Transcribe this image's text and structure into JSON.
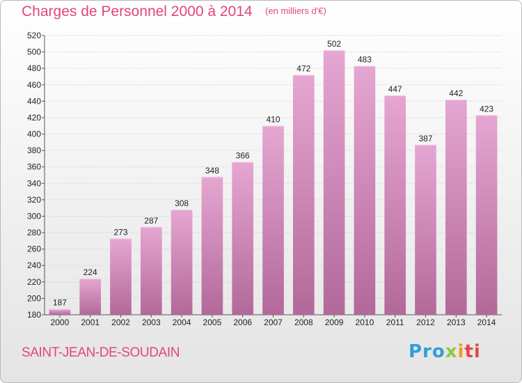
{
  "title": "Charges de Personnel 2000 à 2014",
  "unit_label": "(en milliers d'€)",
  "commune": "SAINT-JEAN-DE-SOUDAIN",
  "logo": {
    "parts": [
      "Pro",
      "x",
      "i",
      "ti"
    ],
    "colors": [
      "#2f9fd8",
      "#8cc63e",
      "#f39a1f",
      "#e2474b"
    ]
  },
  "colors": {
    "bar_top": "#e6a6d2",
    "bar_bottom": "#b2699a",
    "title": "#e0457e"
  },
  "chart_data": {
    "type": "bar",
    "categories": [
      "2000",
      "2001",
      "2002",
      "2003",
      "2004",
      "2005",
      "2006",
      "2007",
      "2008",
      "2009",
      "2010",
      "2011",
      "2012",
      "2013",
      "2014"
    ],
    "values": [
      187,
      224,
      273,
      287,
      308,
      348,
      366,
      410,
      472,
      502,
      483,
      447,
      387,
      442,
      423
    ],
    "ylim": [
      180,
      520
    ],
    "yticks": [
      180,
      200,
      220,
      240,
      260,
      280,
      300,
      320,
      340,
      360,
      380,
      400,
      420,
      440,
      460,
      480,
      500,
      520
    ],
    "grid": true
  }
}
